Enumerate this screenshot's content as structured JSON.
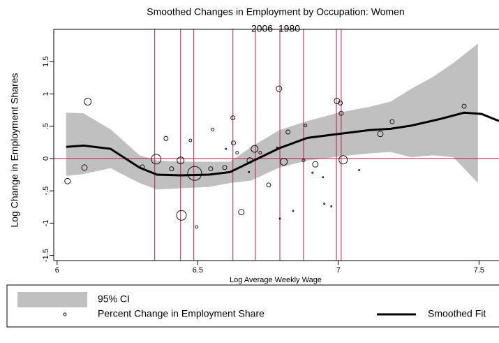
{
  "chart_data": {
    "type": "scatter",
    "title": "Smoothed Changes in Employment by Occupation: Women",
    "subtitle": "2006–1980",
    "x_label": "Log Average Weekly Wage",
    "y_label": "Log Change in Employment Shares",
    "xlim": [
      5.988,
      7.571
    ],
    "ylim": [
      -1.58,
      2.0
    ],
    "xticks": [
      6,
      6.5,
      7,
      7.5
    ],
    "yticks": [
      {
        "value": -1.5,
        "label": "-1.5"
      },
      {
        "value": -1,
        "label": "-1"
      },
      {
        "value": -0.5,
        "label": "-.5"
      },
      {
        "value": 0,
        "label": "0"
      },
      {
        "value": 0.5,
        "label": ".5"
      },
      {
        "value": 1,
        "label": "1"
      },
      {
        "value": 1.5,
        "label": "1.5"
      }
    ],
    "reference_color": "#b5204a",
    "vlines": [
      6.347,
      6.439,
      6.486,
      6.625,
      6.705,
      6.792,
      6.876,
      6.993,
      7.01
    ],
    "hline": 0,
    "series": [
      {
        "name": "95% CI",
        "type": "band",
        "color": "#c0c0c0",
        "x": [
          6.032,
          6.094,
          6.19,
          6.293,
          6.355,
          6.44,
          6.54,
          6.615,
          6.69,
          6.79,
          6.89,
          7.0,
          7.11,
          7.185,
          7.26,
          7.335,
          7.409,
          7.496
        ],
        "upper": [
          0.71,
          0.7,
          0.45,
          0.05,
          -0.03,
          -0.05,
          -0.05,
          -0.05,
          0.18,
          0.44,
          0.58,
          0.71,
          0.8,
          0.88,
          1.08,
          1.26,
          1.48,
          1.78
        ],
        "lower": [
          -0.27,
          -0.24,
          -0.15,
          -0.38,
          -0.48,
          -0.46,
          -0.44,
          -0.38,
          -0.34,
          -0.14,
          -0.03,
          0.03,
          0.08,
          0.1,
          0.02,
          0.05,
          0.02,
          -0.38
        ]
      },
      {
        "name": "Percent Change in Employment Share",
        "type": "scatter",
        "color": "#000000",
        "x": [
          6.037,
          6.109,
          6.097,
          6.303,
          6.352,
          6.387,
          6.407,
          6.439,
          6.442,
          6.474,
          6.489,
          6.496,
          6.546,
          6.553,
          6.596,
          6.6,
          6.625,
          6.627,
          6.64,
          6.655,
          6.682,
          6.685,
          6.702,
          6.722,
          6.752,
          6.782,
          6.789,
          6.792,
          6.806,
          6.821,
          6.839,
          6.876,
          6.883,
          6.908,
          6.918,
          6.945,
          6.95,
          6.975,
          6.995,
          7.007,
          7.01,
          7.017,
          7.074,
          7.149,
          7.191,
          7.447
        ],
        "values": [
          -0.35,
          0.88,
          -0.14,
          -0.13,
          -0.01,
          0.31,
          -0.16,
          -0.03,
          -0.88,
          0.28,
          -0.23,
          -1.06,
          -0.16,
          0.45,
          -0.14,
          0.15,
          0.63,
          0.24,
          0.09,
          -0.83,
          -0.21,
          -0.03,
          0.15,
          0.09,
          -0.41,
          0.17,
          1.08,
          -0.93,
          -0.05,
          0.41,
          -0.81,
          -0.03,
          0.51,
          -0.22,
          -0.09,
          -0.29,
          -0.7,
          -0.74,
          0.89,
          0.86,
          0.7,
          -0.02,
          -0.18,
          0.38,
          0.57,
          0.81
        ],
        "sizes": [
          4,
          5,
          4,
          3,
          7,
          3,
          3,
          5,
          7,
          2,
          10,
          2,
          3,
          2,
          3,
          1,
          3,
          3,
          2,
          4,
          1,
          4,
          5,
          2,
          3,
          1,
          4,
          1,
          5,
          3,
          1,
          2,
          2,
          1,
          4,
          1,
          1,
          1,
          4,
          3,
          3,
          6,
          1,
          4,
          3,
          3
        ]
      },
      {
        "name": "Smoothed Fit",
        "type": "line",
        "color": "#000000",
        "x": [
          6.032,
          6.094,
          6.19,
          6.293,
          6.355,
          6.44,
          6.54,
          6.615,
          6.69,
          6.79,
          6.89,
          7.0,
          7.11,
          7.185,
          7.26,
          7.36,
          7.447,
          7.509,
          7.571
        ],
        "values": [
          0.18,
          0.2,
          0.15,
          -0.14,
          -0.25,
          -0.26,
          -0.25,
          -0.21,
          -0.05,
          0.16,
          0.32,
          0.38,
          0.44,
          0.46,
          0.51,
          0.61,
          0.71,
          0.69,
          0.58
        ]
      }
    ]
  }
}
